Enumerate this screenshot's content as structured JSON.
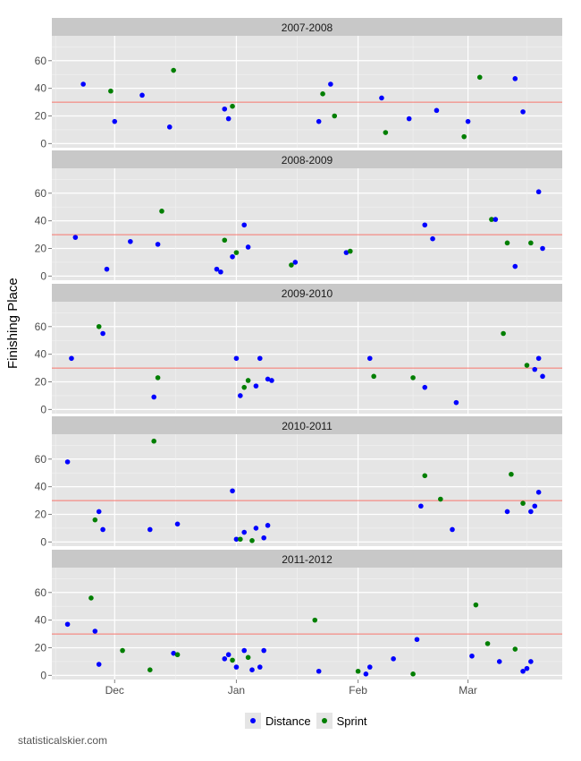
{
  "chart_data": {
    "type": "scatter",
    "ylabel": "Finishing Place",
    "x_ticks": [
      "Dec",
      "Jan",
      "Feb",
      "Mar"
    ],
    "y_ticks": [
      0,
      20,
      40,
      60
    ],
    "ylim": [
      -3,
      78
    ],
    "reference_line": 30,
    "legend": [
      {
        "name": "Distance",
        "color": "#0000ff"
      },
      {
        "name": "Sprint",
        "color": "#007f00"
      }
    ],
    "panels": [
      {
        "title": "2007-2008",
        "points": [
          {
            "x": "Nov 23",
            "y": 43,
            "type": "Distance"
          },
          {
            "x": "Dec 1",
            "y": 16,
            "type": "Distance"
          },
          {
            "x": "Nov 30",
            "y": 38,
            "type": "Sprint"
          },
          {
            "x": "Dec 8",
            "y": 35,
            "type": "Distance"
          },
          {
            "x": "Dec 15",
            "y": 12,
            "type": "Distance"
          },
          {
            "x": "Dec 16",
            "y": 53,
            "type": "Sprint"
          },
          {
            "x": "Dec 29",
            "y": 25,
            "type": "Distance"
          },
          {
            "x": "Dec 30",
            "y": 18,
            "type": "Distance"
          },
          {
            "x": "Dec 31",
            "y": 27,
            "type": "Sprint"
          },
          {
            "x": "Jan 22",
            "y": 16,
            "type": "Distance"
          },
          {
            "x": "Jan 23",
            "y": 36,
            "type": "Sprint"
          },
          {
            "x": "Jan 25",
            "y": 43,
            "type": "Distance"
          },
          {
            "x": "Jan 26",
            "y": 20,
            "type": "Sprint"
          },
          {
            "x": "Feb 7",
            "y": 33,
            "type": "Distance"
          },
          {
            "x": "Feb 8",
            "y": 8,
            "type": "Sprint"
          },
          {
            "x": "Feb 14",
            "y": 18,
            "type": "Distance"
          },
          {
            "x": "Feb 21",
            "y": 24,
            "type": "Distance"
          },
          {
            "x": "Feb 28",
            "y": 5,
            "type": "Sprint"
          },
          {
            "x": "Mar 1",
            "y": 16,
            "type": "Distance"
          },
          {
            "x": "Mar 4",
            "y": 48,
            "type": "Sprint"
          },
          {
            "x": "Mar 13",
            "y": 47,
            "type": "Distance"
          },
          {
            "x": "Mar 15",
            "y": 23,
            "type": "Distance"
          }
        ]
      },
      {
        "title": "2008-2009",
        "points": [
          {
            "x": "Nov 21",
            "y": 28,
            "type": "Distance"
          },
          {
            "x": "Nov 29",
            "y": 5,
            "type": "Distance"
          },
          {
            "x": "Dec 5",
            "y": 25,
            "type": "Distance"
          },
          {
            "x": "Dec 12",
            "y": 23,
            "type": "Distance"
          },
          {
            "x": "Dec 13",
            "y": 47,
            "type": "Sprint"
          },
          {
            "x": "Dec 27",
            "y": 5,
            "type": "Distance"
          },
          {
            "x": "Dec 28",
            "y": 3,
            "type": "Distance"
          },
          {
            "x": "Dec 29",
            "y": 26,
            "type": "Sprint"
          },
          {
            "x": "Dec 31",
            "y": 14,
            "type": "Distance"
          },
          {
            "x": "Jan 1",
            "y": 17,
            "type": "Sprint"
          },
          {
            "x": "Jan 3",
            "y": 37,
            "type": "Distance"
          },
          {
            "x": "Jan 4",
            "y": 21,
            "type": "Distance"
          },
          {
            "x": "Jan 15",
            "y": 8,
            "type": "Sprint"
          },
          {
            "x": "Jan 16",
            "y": 10,
            "type": "Distance"
          },
          {
            "x": "Jan 29",
            "y": 17,
            "type": "Distance"
          },
          {
            "x": "Jan 30",
            "y": 18,
            "type": "Sprint"
          },
          {
            "x": "Feb 18",
            "y": 37,
            "type": "Distance"
          },
          {
            "x": "Feb 20",
            "y": 27,
            "type": "Distance"
          },
          {
            "x": "Mar 7",
            "y": 41,
            "type": "Sprint"
          },
          {
            "x": "Mar 8",
            "y": 41,
            "type": "Distance"
          },
          {
            "x": "Mar 11",
            "y": 24,
            "type": "Sprint"
          },
          {
            "x": "Mar 13",
            "y": 7,
            "type": "Distance"
          },
          {
            "x": "Mar 17",
            "y": 24,
            "type": "Sprint"
          },
          {
            "x": "Mar 19",
            "y": 61,
            "type": "Distance"
          },
          {
            "x": "Mar 20",
            "y": 20,
            "type": "Distance"
          }
        ]
      },
      {
        "title": "2009-2010",
        "points": [
          {
            "x": "Nov 20",
            "y": 37,
            "type": "Distance"
          },
          {
            "x": "Nov 27",
            "y": 60,
            "type": "Sprint"
          },
          {
            "x": "Nov 28",
            "y": 55,
            "type": "Distance"
          },
          {
            "x": "Dec 11",
            "y": 9,
            "type": "Distance"
          },
          {
            "x": "Dec 12",
            "y": 23,
            "type": "Sprint"
          },
          {
            "x": "Jan 1",
            "y": 37,
            "type": "Distance"
          },
          {
            "x": "Jan 2",
            "y": 10,
            "type": "Distance"
          },
          {
            "x": "Jan 3",
            "y": 16,
            "type": "Sprint"
          },
          {
            "x": "Jan 4",
            "y": 21,
            "type": "Sprint"
          },
          {
            "x": "Jan 6",
            "y": 17,
            "type": "Distance"
          },
          {
            "x": "Jan 7",
            "y": 37,
            "type": "Distance"
          },
          {
            "x": "Jan 9",
            "y": 22,
            "type": "Distance"
          },
          {
            "x": "Jan 10",
            "y": 21,
            "type": "Distance"
          },
          {
            "x": "Feb 4",
            "y": 37,
            "type": "Distance"
          },
          {
            "x": "Feb 5",
            "y": 24,
            "type": "Sprint"
          },
          {
            "x": "Feb 15",
            "y": 23,
            "type": "Sprint"
          },
          {
            "x": "Feb 18",
            "y": 16,
            "type": "Distance"
          },
          {
            "x": "Feb 26",
            "y": 5,
            "type": "Distance"
          },
          {
            "x": "Mar 10",
            "y": 55,
            "type": "Sprint"
          },
          {
            "x": "Mar 16",
            "y": 32,
            "type": "Sprint"
          },
          {
            "x": "Mar 18",
            "y": 29,
            "type": "Distance"
          },
          {
            "x": "Mar 19",
            "y": 37,
            "type": "Distance"
          },
          {
            "x": "Mar 20",
            "y": 24,
            "type": "Distance"
          }
        ]
      },
      {
        "title": "2010-2011",
        "points": [
          {
            "x": "Nov 19",
            "y": 58,
            "type": "Distance"
          },
          {
            "x": "Nov 26",
            "y": 16,
            "type": "Sprint"
          },
          {
            "x": "Nov 27",
            "y": 22,
            "type": "Distance"
          },
          {
            "x": "Nov 28",
            "y": 9,
            "type": "Distance"
          },
          {
            "x": "Dec 10",
            "y": 9,
            "type": "Distance"
          },
          {
            "x": "Dec 11",
            "y": 73,
            "type": "Sprint"
          },
          {
            "x": "Dec 17",
            "y": 13,
            "type": "Distance"
          },
          {
            "x": "Dec 31",
            "y": 37,
            "type": "Distance"
          },
          {
            "x": "Jan 1",
            "y": 2,
            "type": "Distance"
          },
          {
            "x": "Jan 2",
            "y": 2,
            "type": "Sprint"
          },
          {
            "x": "Jan 3",
            "y": 7,
            "type": "Distance"
          },
          {
            "x": "Jan 5",
            "y": 1,
            "type": "Sprint"
          },
          {
            "x": "Jan 6",
            "y": 10,
            "type": "Distance"
          },
          {
            "x": "Jan 8",
            "y": 3,
            "type": "Distance"
          },
          {
            "x": "Jan 9",
            "y": 12,
            "type": "Distance"
          },
          {
            "x": "Feb 17",
            "y": 26,
            "type": "Distance"
          },
          {
            "x": "Feb 18",
            "y": 48,
            "type": "Sprint"
          },
          {
            "x": "Feb 22",
            "y": 31,
            "type": "Sprint"
          },
          {
            "x": "Feb 25",
            "y": 9,
            "type": "Distance"
          },
          {
            "x": "Mar 11",
            "y": 22,
            "type": "Distance"
          },
          {
            "x": "Mar 12",
            "y": 49,
            "type": "Sprint"
          },
          {
            "x": "Mar 15",
            "y": 28,
            "type": "Sprint"
          },
          {
            "x": "Mar 17",
            "y": 22,
            "type": "Distance"
          },
          {
            "x": "Mar 18",
            "y": 26,
            "type": "Distance"
          },
          {
            "x": "Mar 19",
            "y": 36,
            "type": "Distance"
          }
        ]
      },
      {
        "title": "2011-2012",
        "points": [
          {
            "x": "Nov 19",
            "y": 37,
            "type": "Distance"
          },
          {
            "x": "Nov 25",
            "y": 56,
            "type": "Sprint"
          },
          {
            "x": "Nov 26",
            "y": 32,
            "type": "Distance"
          },
          {
            "x": "Nov 27",
            "y": 8,
            "type": "Distance"
          },
          {
            "x": "Dec 3",
            "y": 18,
            "type": "Sprint"
          },
          {
            "x": "Dec 10",
            "y": 4,
            "type": "Sprint"
          },
          {
            "x": "Dec 16",
            "y": 16,
            "type": "Distance"
          },
          {
            "x": "Dec 17",
            "y": 15,
            "type": "Sprint"
          },
          {
            "x": "Dec 29",
            "y": 12,
            "type": "Distance"
          },
          {
            "x": "Dec 30",
            "y": 15,
            "type": "Distance"
          },
          {
            "x": "Dec 31",
            "y": 11,
            "type": "Sprint"
          },
          {
            "x": "Jan 1",
            "y": 6,
            "type": "Distance"
          },
          {
            "x": "Jan 3",
            "y": 18,
            "type": "Distance"
          },
          {
            "x": "Jan 4",
            "y": 13,
            "type": "Sprint"
          },
          {
            "x": "Jan 5",
            "y": 4,
            "type": "Distance"
          },
          {
            "x": "Jan 7",
            "y": 6,
            "type": "Distance"
          },
          {
            "x": "Jan 8",
            "y": 18,
            "type": "Distance"
          },
          {
            "x": "Jan 21",
            "y": 40,
            "type": "Sprint"
          },
          {
            "x": "Jan 22",
            "y": 3,
            "type": "Distance"
          },
          {
            "x": "Feb 1",
            "y": 3,
            "type": "Sprint"
          },
          {
            "x": "Feb 3",
            "y": 1,
            "type": "Distance"
          },
          {
            "x": "Feb 4",
            "y": 6,
            "type": "Distance"
          },
          {
            "x": "Feb 10",
            "y": 12,
            "type": "Distance"
          },
          {
            "x": "Feb 15",
            "y": 1,
            "type": "Sprint"
          },
          {
            "x": "Feb 16",
            "y": 26,
            "type": "Distance"
          },
          {
            "x": "Mar 2",
            "y": 14,
            "type": "Distance"
          },
          {
            "x": "Mar 3",
            "y": 51,
            "type": "Sprint"
          },
          {
            "x": "Mar 6",
            "y": 23,
            "type": "Sprint"
          },
          {
            "x": "Mar 9",
            "y": 10,
            "type": "Distance"
          },
          {
            "x": "Mar 13",
            "y": 19,
            "type": "Sprint"
          },
          {
            "x": "Mar 15",
            "y": 3,
            "type": "Distance"
          },
          {
            "x": "Mar 16",
            "y": 5,
            "type": "Distance"
          },
          {
            "x": "Mar 17",
            "y": 10,
            "type": "Distance"
          }
        ]
      }
    ]
  },
  "credit": "statisticalskier.com"
}
